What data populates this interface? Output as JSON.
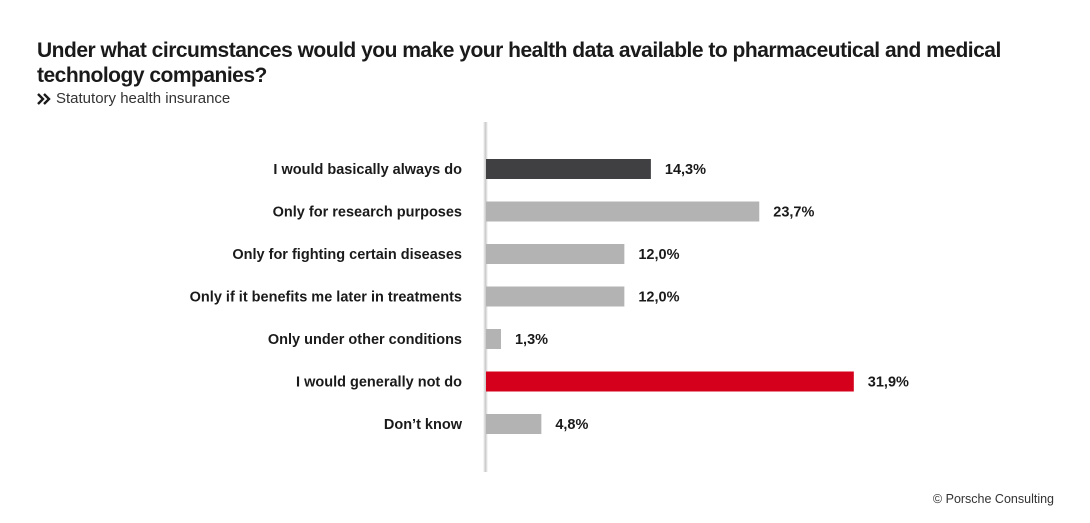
{
  "title": "Under what circumstances would you make your health data available to pharmaceutical and medical technology companies?",
  "subtitle": "Statutory health insurance",
  "copyright": "© Porsche Consulting",
  "colors": {
    "default_bar": "#b3b3b4",
    "highlight_dark": "#404042",
    "highlight_red": "#d5001c",
    "axis": "#c8c8c8"
  },
  "chart_data": {
    "type": "bar",
    "orientation": "horizontal",
    "title": "Under what circumstances would you make your health data available to pharmaceutical and medical technology companies?",
    "subtitle": "Statutory health insurance",
    "unit": "%",
    "xlim": [
      0,
      40
    ],
    "categories": [
      "I would basically always do",
      "Only for research purposes",
      "Only for fighting certain diseases",
      "Only if it benefits me later in treatments",
      "Only under other conditions",
      "I would generally not do",
      "Don’t know"
    ],
    "values": [
      14.3,
      23.7,
      12.0,
      12.0,
      1.3,
      31.9,
      4.8
    ],
    "value_labels": [
      "14,3%",
      "23,7%",
      "12,0%",
      "12,0%",
      "1,3%",
      "31,9%",
      "4,8%"
    ],
    "bar_colors": [
      "#404042",
      "#b3b3b4",
      "#b3b3b4",
      "#b3b3b4",
      "#b3b3b4",
      "#d5001c",
      "#b3b3b4"
    ]
  }
}
